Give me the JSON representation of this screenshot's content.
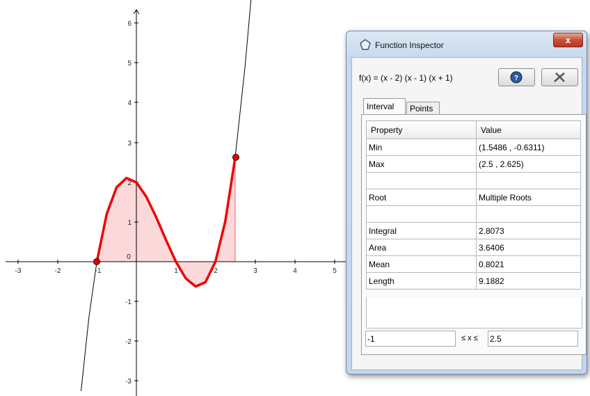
{
  "graph": {
    "x_tick_labels": [
      "-3",
      "-2",
      "-1",
      "0",
      "1",
      "2",
      "3",
      "4",
      "5"
    ],
    "y_tick_labels": [
      "6",
      "5",
      "4",
      "3",
      "2",
      "1",
      "-1",
      "-2",
      "-3"
    ]
  },
  "window": {
    "title": "Function Inspector"
  },
  "function": "f(x) = (x - 2) (x - 1) (x + 1)",
  "tabs": [
    "Interval",
    "Points"
  ],
  "table": {
    "header": [
      "Property",
      "Value"
    ],
    "rows": [
      [
        "Min",
        "(1.5486 , -0.6311)"
      ],
      [
        "Max",
        "(2.5 , 2.625)"
      ],
      [
        "Root",
        "Multiple Roots"
      ],
      [
        "Integral",
        "2.8073"
      ],
      [
        "Area",
        "3.6406"
      ],
      [
        "Mean",
        "0.8021"
      ],
      [
        "Length",
        "9.1882"
      ]
    ]
  },
  "interval": {
    "lower": "-1",
    "relation": "≤ x ≤",
    "upper": "2.5"
  }
}
